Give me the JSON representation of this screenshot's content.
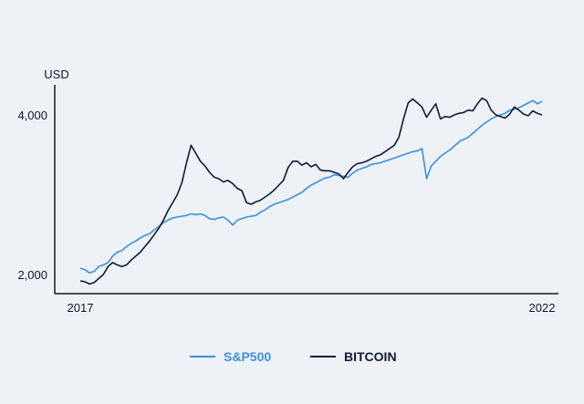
{
  "chart_data": {
    "type": "line",
    "title": "",
    "xlabel": "",
    "ylabel": "USD",
    "x_tick_labels": [
      "2017",
      "2022"
    ],
    "y_tick_labels": [
      "2,000",
      "4,000"
    ],
    "xlim": [
      2017.0,
      2022.0
    ],
    "ylim": [
      1850,
      4350
    ],
    "grid": false,
    "legend_position": "bottom-center",
    "series": [
      {
        "name": "S&P500",
        "color": "#3b8fe0",
        "x": [
          2017.0,
          2017.05,
          2017.1,
          2017.15,
          2017.2,
          2017.25,
          2017.3,
          2017.35,
          2017.4,
          2017.45,
          2017.5,
          2017.55,
          2017.6,
          2017.65,
          2017.7,
          2017.75,
          2017.8,
          2017.85,
          2017.9,
          2017.95,
          2018.0,
          2018.05,
          2018.1,
          2018.15,
          2018.2,
          2018.25,
          2018.3,
          2018.35,
          2018.4,
          2018.45,
          2018.5,
          2018.55,
          2018.6,
          2018.65,
          2018.7,
          2018.75,
          2018.8,
          2018.85,
          2018.9,
          2018.95,
          2019.0,
          2019.05,
          2019.1,
          2019.15,
          2019.2,
          2019.25,
          2019.3,
          2019.35,
          2019.4,
          2019.45,
          2019.5,
          2019.55,
          2019.6,
          2019.65,
          2019.7,
          2019.75,
          2019.8,
          2019.85,
          2019.9,
          2019.95,
          2020.0,
          2020.05,
          2020.1,
          2020.15,
          2020.2,
          2020.25,
          2020.3,
          2020.35,
          2020.4,
          2020.45,
          2020.5,
          2020.55,
          2020.6,
          2020.65,
          2020.7,
          2020.75,
          2020.8,
          2020.85,
          2020.9,
          2020.95,
          2021.0,
          2021.05,
          2021.08,
          2021.1,
          2021.12,
          2021.15,
          2021.2,
          2021.25,
          2021.3,
          2021.35,
          2021.4,
          2021.45,
          2021.5,
          2021.55,
          2021.6,
          2021.65,
          2021.7,
          2021.75,
          2021.8,
          2021.85,
          2021.9,
          2021.95,
          2022.0
        ],
        "values": [
          2080,
          2060,
          2020,
          2040,
          2100,
          2120,
          2150,
          2230,
          2280,
          2300,
          2350,
          2390,
          2420,
          2460,
          2490,
          2510,
          2560,
          2600,
          2650,
          2680,
          2710,
          2720,
          2730,
          2740,
          2760,
          2750,
          2760,
          2740,
          2700,
          2690,
          2710,
          2720,
          2680,
          2620,
          2680,
          2700,
          2720,
          2730,
          2740,
          2780,
          2810,
          2850,
          2880,
          2900,
          2920,
          2940,
          2970,
          3000,
          3030,
          3080,
          3120,
          3150,
          3180,
          3210,
          3220,
          3250,
          3240,
          3230,
          3220,
          3270,
          3310,
          3330,
          3350,
          3380,
          3390,
          3400,
          3420,
          3440,
          3460,
          3480,
          3500,
          3520,
          3540,
          3550,
          3580,
          3200,
          3360,
          3420,
          3480,
          3520,
          3560,
          3610,
          3640,
          3660,
          3680,
          3690,
          3720,
          3770,
          3820,
          3870,
          3910,
          3950,
          3980,
          4000,
          4020,
          4060,
          4070,
          4090,
          4120,
          4150,
          4180,
          4140,
          4170
        ]
      },
      {
        "name": "BITCOIN",
        "color": "#0e1c36",
        "x": [
          2017.0,
          2017.05,
          2017.1,
          2017.15,
          2017.2,
          2017.25,
          2017.3,
          2017.35,
          2017.4,
          2017.45,
          2017.5,
          2017.55,
          2017.6,
          2017.65,
          2017.7,
          2017.75,
          2017.8,
          2017.85,
          2017.9,
          2017.95,
          2018.0,
          2018.05,
          2018.1,
          2018.15,
          2018.2,
          2018.25,
          2018.3,
          2018.35,
          2018.4,
          2018.45,
          2018.5,
          2018.55,
          2018.6,
          2018.65,
          2018.7,
          2018.75,
          2018.8,
          2018.85,
          2018.9,
          2018.95,
          2019.0,
          2019.05,
          2019.1,
          2019.15,
          2019.2,
          2019.25,
          2019.3,
          2019.35,
          2019.4,
          2019.45,
          2019.5,
          2019.55,
          2019.6,
          2019.65,
          2019.7,
          2019.75,
          2019.8,
          2019.85,
          2019.9,
          2019.95,
          2020.0,
          2020.05,
          2020.1,
          2020.15,
          2020.2,
          2020.25,
          2020.3,
          2020.35,
          2020.4,
          2020.45,
          2020.5,
          2020.55,
          2020.6,
          2020.65,
          2020.7,
          2020.75,
          2020.8,
          2020.85,
          2020.9,
          2020.95,
          2021.0,
          2021.05,
          2021.1,
          2021.15,
          2021.2,
          2021.25,
          2021.3,
          2021.35,
          2021.4,
          2021.45,
          2021.5,
          2021.55,
          2021.6,
          2021.65,
          2021.7,
          2021.75,
          2021.8,
          2021.85,
          2021.9,
          2021.95,
          2022.0
        ],
        "values": [
          1920,
          1910,
          1880,
          1900,
          1950,
          2000,
          2100,
          2150,
          2120,
          2100,
          2120,
          2180,
          2230,
          2280,
          2350,
          2420,
          2500,
          2580,
          2680,
          2800,
          2900,
          3000,
          3150,
          3400,
          3620,
          3520,
          3420,
          3360,
          3280,
          3220,
          3200,
          3160,
          3180,
          3140,
          3080,
          3050,
          2900,
          2880,
          2910,
          2930,
          2970,
          3010,
          3060,
          3120,
          3180,
          3340,
          3420,
          3420,
          3370,
          3400,
          3350,
          3380,
          3310,
          3300,
          3300,
          3280,
          3260,
          3200,
          3280,
          3350,
          3390,
          3400,
          3420,
          3450,
          3480,
          3500,
          3540,
          3580,
          3620,
          3720,
          3950,
          4150,
          4200,
          4150,
          4100,
          3970,
          4060,
          4140,
          3950,
          3980,
          3970,
          4000,
          4020,
          4030,
          4060,
          4050,
          4140,
          4210,
          4180,
          4060,
          4000,
          3980,
          3960,
          4010,
          4100,
          4060,
          4010,
          3990,
          4050,
          4020,
          4000
        ]
      }
    ]
  }
}
